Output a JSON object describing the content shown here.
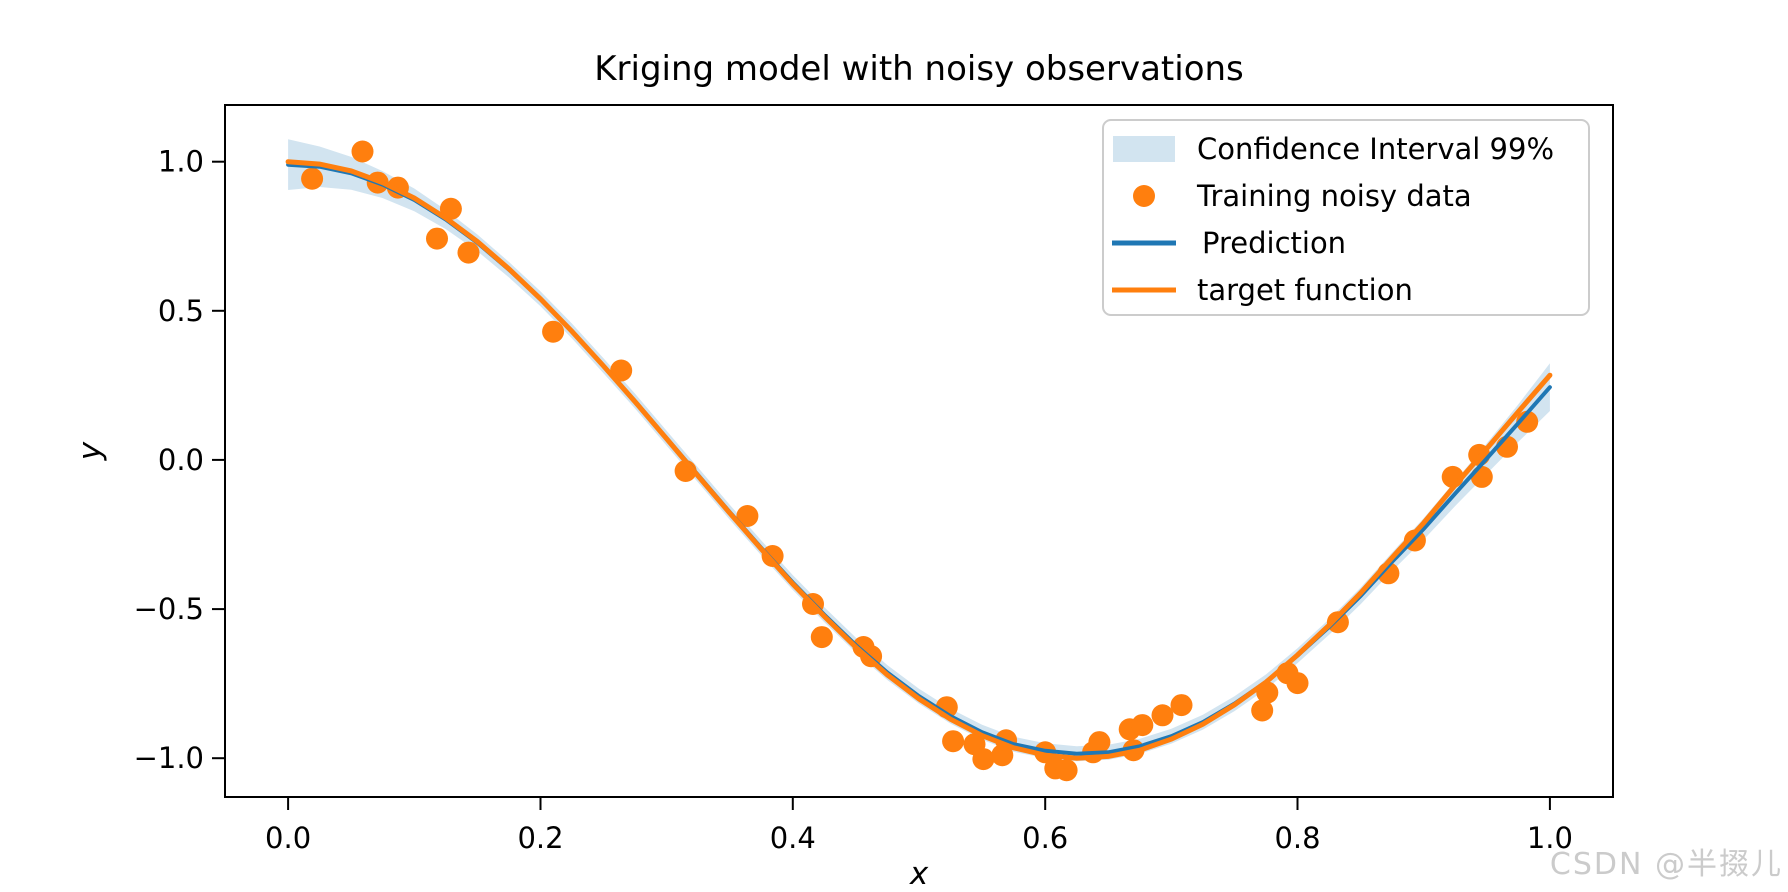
{
  "colors": {
    "band": "#d2e4f0",
    "scatter": "#ff7f0e",
    "prediction": "#1f77b4",
    "target": "#ff7f0e",
    "axis": "#000000",
    "legend_border": "#cccccc",
    "watermark": "#cbcbcb"
  },
  "watermark": "CSDN @半掇儿",
  "chart_data": {
    "type": "line",
    "title": "Kriging model with noisy observations",
    "xlabel": "x",
    "ylabel": "y",
    "xlim": [
      -0.05,
      1.05
    ],
    "ylim": [
      -1.13,
      1.19
    ],
    "grid": false,
    "legend_position": "upper right",
    "xticks": {
      "values": [
        0.0,
        0.2,
        0.4,
        0.6,
        0.8,
        1.0
      ],
      "labels": [
        "0.0",
        "0.2",
        "0.4",
        "0.6",
        "0.8",
        "1.0"
      ]
    },
    "yticks": {
      "values": [
        -1.0,
        -0.5,
        0.0,
        0.5,
        1.0
      ],
      "labels": [
        "−1.0",
        "−0.5",
        "0.0",
        "0.5",
        "1.0"
      ]
    },
    "x": [
      0,
      0.025,
      0.05,
      0.075,
      0.1,
      0.125,
      0.15,
      0.175,
      0.2,
      0.225,
      0.25,
      0.275,
      0.3,
      0.325,
      0.35,
      0.375,
      0.4,
      0.425,
      0.45,
      0.475,
      0.5,
      0.525,
      0.55,
      0.575,
      0.6,
      0.625,
      0.65,
      0.675,
      0.7,
      0.725,
      0.75,
      0.775,
      0.8,
      0.825,
      0.85,
      0.875,
      0.9,
      0.925,
      0.95,
      0.975,
      1.0
    ],
    "series": [
      {
        "name": "Confidence Interval 99%",
        "type": "band",
        "around": "Prediction",
        "color": "#d2e4f0",
        "halfwidth": [
          0.085,
          0.068,
          0.055,
          0.045,
          0.038,
          0.032,
          0.028,
          0.026,
          0.025,
          0.025,
          0.025,
          0.025,
          0.025,
          0.025,
          0.025,
          0.025,
          0.025,
          0.025,
          0.025,
          0.025,
          0.025,
          0.025,
          0.025,
          0.025,
          0.025,
          0.025,
          0.025,
          0.025,
          0.025,
          0.025,
          0.025,
          0.025,
          0.025,
          0.026,
          0.028,
          0.031,
          0.036,
          0.042,
          0.051,
          0.063,
          0.08
        ]
      },
      {
        "name": "Training noisy data",
        "type": "scatter",
        "color": "#ff7f0e",
        "points": [
          [
            0.019,
            0.943
          ],
          [
            0.059,
            1.034
          ],
          [
            0.071,
            0.93
          ],
          [
            0.087,
            0.913
          ],
          [
            0.118,
            0.742
          ],
          [
            0.129,
            0.842
          ],
          [
            0.143,
            0.695
          ],
          [
            0.21,
            0.43
          ],
          [
            0.264,
            0.3
          ],
          [
            0.315,
            -0.037
          ],
          [
            0.364,
            -0.188
          ],
          [
            0.384,
            -0.322
          ],
          [
            0.416,
            -0.483
          ],
          [
            0.423,
            -0.594
          ],
          [
            0.456,
            -0.627
          ],
          [
            0.462,
            -0.658
          ],
          [
            0.522,
            -0.829
          ],
          [
            0.527,
            -0.943
          ],
          [
            0.544,
            -0.953
          ],
          [
            0.551,
            -1.003
          ],
          [
            0.566,
            -0.99
          ],
          [
            0.569,
            -0.94
          ],
          [
            0.6,
            -0.98
          ],
          [
            0.608,
            -1.034
          ],
          [
            0.617,
            -1.04
          ],
          [
            0.638,
            -0.98
          ],
          [
            0.643,
            -0.946
          ],
          [
            0.667,
            -0.903
          ],
          [
            0.67,
            -0.973
          ],
          [
            0.677,
            -0.889
          ],
          [
            0.693,
            -0.856
          ],
          [
            0.708,
            -0.822
          ],
          [
            0.772,
            -0.84
          ],
          [
            0.776,
            -0.78
          ],
          [
            0.792,
            -0.715
          ],
          [
            0.8,
            -0.748
          ],
          [
            0.832,
            -0.544
          ],
          [
            0.872,
            -0.38
          ],
          [
            0.893,
            -0.27
          ],
          [
            0.923,
            -0.057
          ],
          [
            0.944,
            0.017
          ],
          [
            0.946,
            -0.057
          ],
          [
            0.966,
            0.044
          ],
          [
            0.982,
            0.128
          ]
        ]
      },
      {
        "name": "Prediction",
        "type": "line",
        "color": "#1f77b4",
        "values": [
          0.99,
          0.983,
          0.961,
          0.923,
          0.872,
          0.806,
          0.728,
          0.638,
          0.54,
          0.432,
          0.316,
          0.197,
          0.073,
          -0.051,
          -0.175,
          -0.295,
          -0.411,
          -0.519,
          -0.621,
          -0.713,
          -0.792,
          -0.859,
          -0.913,
          -0.953,
          -0.975,
          -0.985,
          -0.98,
          -0.96,
          -0.926,
          -0.879,
          -0.817,
          -0.744,
          -0.656,
          -0.56,
          -0.456,
          -0.341,
          -0.231,
          -0.112,
          0.005,
          0.124,
          0.244
        ]
      },
      {
        "name": "target function",
        "type": "line",
        "color": "#ff7f0e",
        "values": [
          1.0,
          0.992,
          0.969,
          0.93,
          0.878,
          0.811,
          0.732,
          0.641,
          0.54,
          0.431,
          0.315,
          0.195,
          0.071,
          -0.054,
          -0.178,
          -0.299,
          -0.416,
          -0.525,
          -0.628,
          -0.721,
          -0.801,
          -0.869,
          -0.924,
          -0.965,
          -0.99,
          -1.0,
          -0.994,
          -0.973,
          -0.936,
          -0.886,
          -0.821,
          -0.745,
          -0.654,
          -0.554,
          -0.446,
          -0.327,
          -0.211,
          -0.084,
          0.038,
          0.162,
          0.284
        ]
      }
    ]
  }
}
